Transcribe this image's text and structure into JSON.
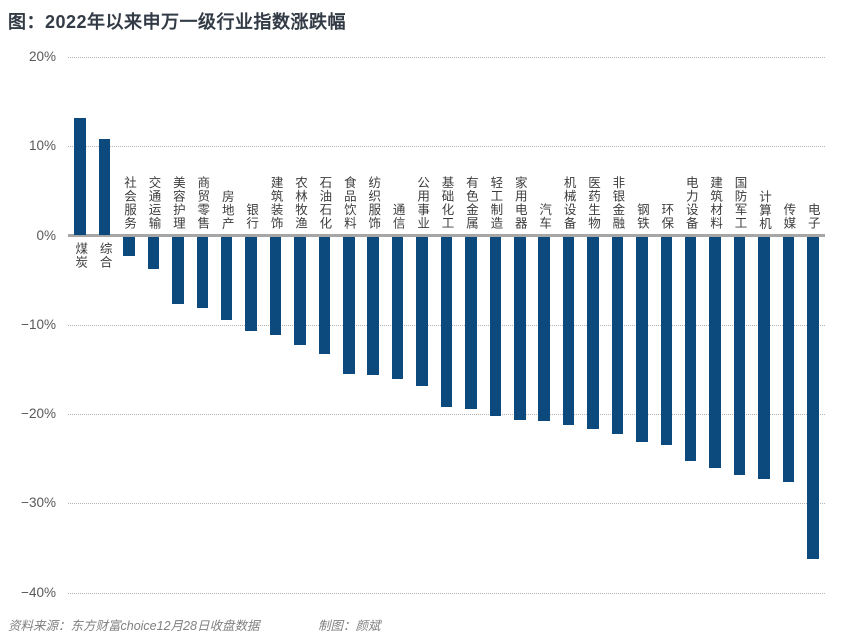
{
  "page": {
    "title": "图：2022年以来申万一级行业指数涨跌幅",
    "footer": {
      "source": "资料来源：东方财富choice12月28日收盘数据",
      "credit": "制图：颜斌"
    }
  },
  "chart_data": {
    "type": "bar",
    "title": "图：2022年以来申万一级行业指数涨跌幅",
    "categories": [
      "煤炭",
      "综合",
      "社会服务",
      "交通运输",
      "美容护理",
      "商贸零售",
      "房地产",
      "银行",
      "建筑装饰",
      "农林牧渔",
      "石油石化",
      "食品饮料",
      "纺织服饰",
      "通信",
      "公用事业",
      "基础化工",
      "有色金属",
      "轻工制造",
      "家用电器",
      "汽车",
      "机械设备",
      "医药生物",
      "非银金融",
      "钢铁",
      "环保",
      "电力设备",
      "建筑材料",
      "国防军工",
      "计算机",
      "传媒",
      "电子"
    ],
    "values": [
      13.2,
      10.8,
      -2.1,
      -3.6,
      -7.5,
      -8.0,
      -9.3,
      -10.5,
      -11.0,
      -12.1,
      -13.1,
      -15.3,
      -15.4,
      -15.9,
      -16.7,
      -19.0,
      -19.3,
      -20.0,
      -20.5,
      -20.6,
      -21.1,
      -21.5,
      -22.0,
      -22.9,
      -23.3,
      -25.1,
      -25.9,
      -26.7,
      -27.1,
      -27.4,
      -36.1
    ],
    "unit": "%",
    "xlabel": "",
    "ylabel": "",
    "ylim": [
      -40,
      20
    ],
    "yticks": [
      {
        "value": 20,
        "label": "20%"
      },
      {
        "value": 10,
        "label": "10%"
      },
      {
        "value": 0,
        "label": "0%"
      },
      {
        "value": -10,
        "label": "−10%"
      },
      {
        "value": -20,
        "label": "−20%"
      },
      {
        "value": -30,
        "label": "−30%"
      },
      {
        "value": -40,
        "label": "−40%"
      }
    ],
    "grid": "horizontal-dotted",
    "legend": null,
    "bar_color": "#0c4a7d",
    "source_note": "资料来源：东方财富choice12月28日收盘数据",
    "credit": "制图：颜斌"
  }
}
